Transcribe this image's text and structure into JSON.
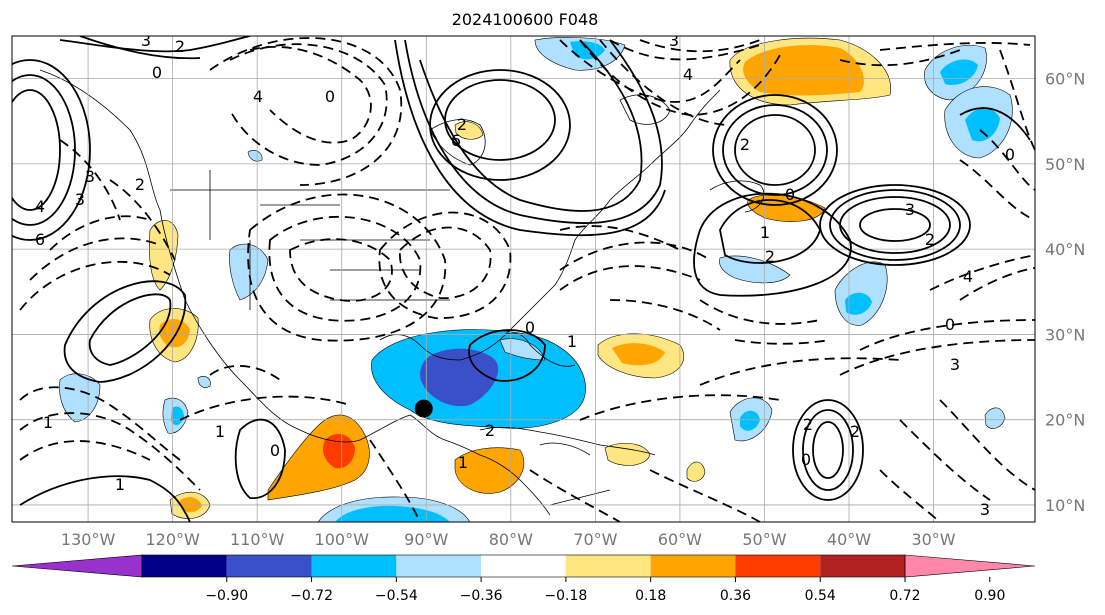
{
  "title": "2024100600 F048",
  "map": {
    "lon_range": [
      -139,
      -18
    ],
    "lat_range": [
      8,
      65
    ],
    "lon_labels": [
      "130°W",
      "120°W",
      "110°W",
      "100°W",
      "90°W",
      "80°W",
      "70°W",
      "60°W",
      "50°W",
      "40°W",
      "30°W"
    ],
    "lat_labels": [
      "10°N",
      "20°N",
      "30°N",
      "40°N",
      "50°N",
      "60°N"
    ],
    "contour_labels": [
      "3",
      "2",
      "0",
      "4",
      "6",
      "2",
      "3",
      "4",
      "0",
      "2",
      "3",
      "4",
      "6",
      "3",
      "2",
      "0",
      "1",
      "2",
      "2",
      "3",
      "4",
      "3",
      "0",
      "2",
      "1",
      "0",
      "1",
      "2",
      "0",
      "2",
      "0",
      "1",
      "1",
      "0",
      "1",
      "3"
    ],
    "marker": {
      "name": "black-dot",
      "lon": -90.3,
      "lat": 21.3
    }
  },
  "colorbar": {
    "ticks": [
      "−0.90",
      "−0.72",
      "−0.54",
      "−0.36",
      "−0.18",
      "0.18",
      "0.36",
      "0.54",
      "0.72",
      "0.90"
    ],
    "colors": [
      "#9932cc",
      "#00008b",
      "#3a50c8",
      "#00bfff",
      "#b0e0ff",
      "#ffffff",
      "#ffe680",
      "#ffa500",
      "#ff3c00",
      "#b22222",
      "#ff88aa"
    ]
  }
}
